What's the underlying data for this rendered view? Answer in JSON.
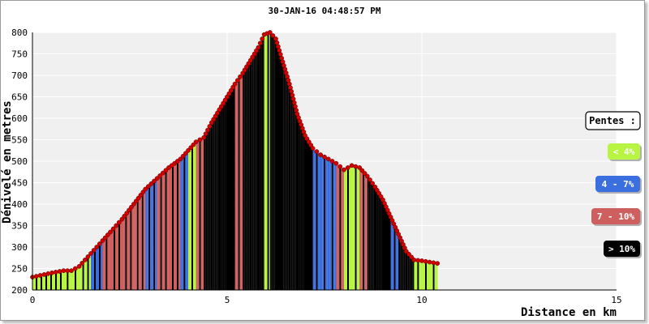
{
  "chart_data": {
    "type": "area",
    "title": "30-JAN-16 04:48:57 PM",
    "xlabel": "Distance en km",
    "ylabel": "Dénivelé en metres",
    "xlim": [
      0,
      15
    ],
    "ylim": [
      200,
      800
    ],
    "x_ticks": [
      "0",
      "5",
      "10",
      "15"
    ],
    "y_ticks": [
      "200",
      "250",
      "300",
      "350",
      "400",
      "450",
      "500",
      "550",
      "600",
      "650",
      "700",
      "750",
      "800"
    ],
    "grid": true,
    "legend_position": "right",
    "colors": {
      "plot_bg": "#f0f0f0",
      "grid": "#ffffff",
      "profile_points": "#d40000",
      "lt4": "#b8f542",
      "p4_7": "#3b6fe0",
      "p7_10": "#cf5f5f",
      "gt10": "#000000"
    },
    "legend": {
      "title": "Pentes :",
      "items": [
        {
          "label": "< 4%",
          "color": "#b8f542",
          "text_color": "#ffffff"
        },
        {
          "label": "4 - 7%",
          "color": "#3b6fe0",
          "text_color": "#ffffff"
        },
        {
          "label": "7 - 10%",
          "color": "#cf5f5f",
          "text_color": "#ffffff"
        },
        {
          "label": "> 10%",
          "color": "#000000",
          "text_color": "#ffffff"
        }
      ]
    },
    "profile": {
      "x": [
        0,
        0.5,
        0.8,
        1.0,
        1.2,
        1.5,
        1.8,
        2.0,
        2.3,
        2.6,
        2.9,
        3.2,
        3.5,
        3.8,
        4.0,
        4.2,
        4.4,
        4.6,
        4.8,
        5.0,
        5.2,
        5.4,
        5.6,
        5.8,
        5.95,
        6.1,
        6.25,
        6.4,
        6.6,
        6.8,
        7.0,
        7.2,
        7.4,
        7.6,
        7.8,
        8.0,
        8.2,
        8.4,
        8.6,
        8.8,
        9.0,
        9.2,
        9.4,
        9.6,
        9.8,
        10.0,
        10.2,
        10.4
      ],
      "y": [
        230,
        240,
        245,
        245,
        255,
        285,
        315,
        335,
        365,
        400,
        435,
        460,
        485,
        505,
        525,
        545,
        555,
        590,
        620,
        650,
        680,
        705,
        735,
        765,
        795,
        800,
        785,
        740,
        680,
        610,
        560,
        530,
        515,
        505,
        495,
        480,
        490,
        485,
        465,
        440,
        410,
        370,
        330,
        290,
        270,
        268,
        265,
        262
      ]
    },
    "slope_classes": [
      "lt4",
      "lt4",
      "lt4",
      "lt4",
      "lt4",
      "p4_7",
      "p7_10",
      "p7_10",
      "p7_10",
      "p7_10",
      "p4_7",
      "p7_10",
      "p7_10",
      "p4_7",
      "lt4",
      "p7_10",
      "gt10",
      "gt10",
      "gt10",
      "gt10",
      "p7_10",
      "gt10",
      "gt10",
      "gt10",
      "lt4",
      "gt10",
      "gt10",
      "gt10",
      "gt10",
      "gt10",
      "gt10",
      "p4_7",
      "p4_7",
      "p4_7",
      "p7_10",
      "lt4",
      "lt4",
      "p7_10",
      "gt10",
      "gt10",
      "gt10",
      "p4_7",
      "gt10",
      "gt10",
      "lt4",
      "lt4",
      "lt4"
    ]
  }
}
